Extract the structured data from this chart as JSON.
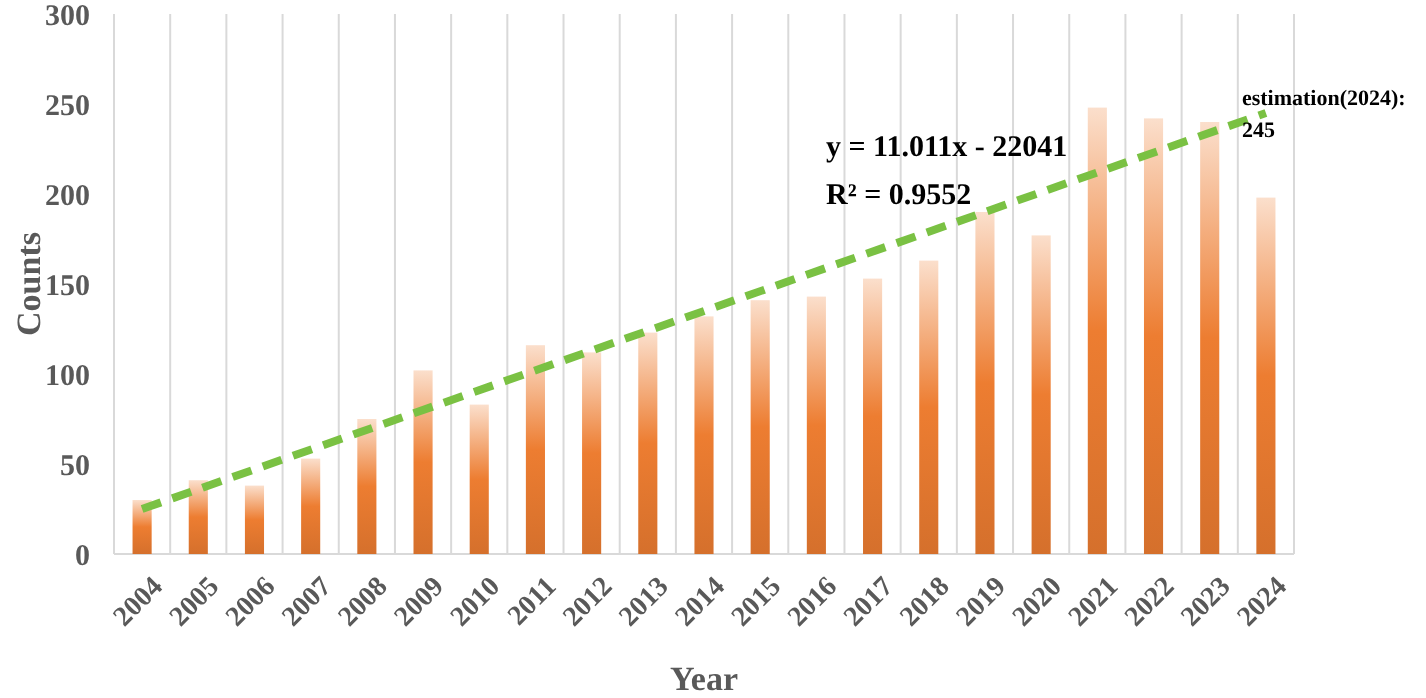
{
  "chart_data": {
    "type": "bar",
    "xlabel": "Year",
    "ylabel": "Counts",
    "categories": [
      "2004",
      "2005",
      "2006",
      "2007",
      "2008",
      "2009",
      "2010",
      "2011",
      "2012",
      "2013",
      "2014",
      "2015",
      "2016",
      "2017",
      "2018",
      "2019",
      "2020",
      "2021",
      "2022",
      "2023",
      "2024"
    ],
    "series": [
      {
        "color": "#ed7d31",
        "values": [
          30,
          41,
          38,
          53,
          75,
          102,
          83,
          116,
          112,
          123,
          132,
          141,
          143,
          153,
          163,
          190,
          177,
          248,
          242,
          240,
          198
        ]
      },
      {
        "type": "line",
        "color": "#7ac143",
        "line_style": "dashed",
        "marker": "none",
        "values": [
          25,
          null,
          null,
          null,
          null,
          null,
          null,
          null,
          null,
          null,
          null,
          null,
          null,
          null,
          null,
          null,
          null,
          null,
          null,
          null,
          245
        ]
      }
    ],
    "ylim": [
      0,
      300
    ],
    "yticks": [
      0,
      50,
      100,
      150,
      200,
      250,
      300
    ],
    "grid": "x",
    "annotations": [
      "y = 11.011x - 22041",
      "R² = 0.9552",
      {
        "text": "estimation(2024): 245",
        "x": "2024",
        "y": 245
      }
    ]
  }
}
